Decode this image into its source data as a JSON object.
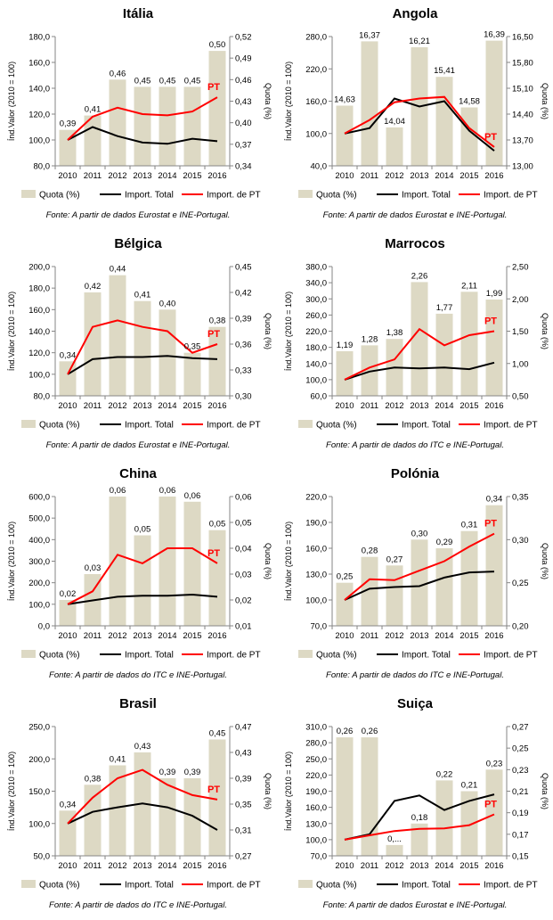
{
  "colors": {
    "bar": "#ddd9c4",
    "total": "#000000",
    "pt": "#ff0000",
    "axis": "#868686"
  },
  "legend": {
    "quota": "Quota (%)",
    "total": "Import. Total",
    "pt": "Import. de PT"
  },
  "chart_data": [
    {
      "type": "bar+line",
      "title": "Itália",
      "source": "Fonte: A partir de dados Eurostat e INE-Portugal.",
      "categories": [
        "2010",
        "2011",
        "2012",
        "2013",
        "2014",
        "2015",
        "2016"
      ],
      "ylabel": "Índ.Valor (2010 = 100)",
      "y2label": "Quota (%)",
      "ylim": [
        80,
        180
      ],
      "yticks": [
        "80,0",
        "100,0",
        "120,0",
        "140,0",
        "160,0",
        "180,0"
      ],
      "y2lim": [
        0.34,
        0.52
      ],
      "y2ticks": [
        "0,34",
        "0,37",
        "0,40",
        "0,43",
        "0,46",
        "0,49",
        "0,52"
      ],
      "quota": [
        0.39,
        0.41,
        0.46,
        0.45,
        0.45,
        0.45,
        0.5
      ],
      "quota_labels": [
        "0,39",
        "0,41",
        "0,46",
        "0,45",
        "0,45",
        "0,45",
        "0,50"
      ],
      "total": [
        100,
        110,
        103,
        98,
        97,
        101,
        99
      ],
      "pt": [
        100,
        118,
        125,
        120,
        119,
        122,
        133
      ],
      "pt_label": "PT"
    },
    {
      "type": "bar+line",
      "title": "Angola",
      "source": "Fonte: A partir de dados Eurostat e INE-Portugal.",
      "categories": [
        "2010",
        "2011",
        "2012",
        "2013",
        "2014",
        "2015",
        "2016"
      ],
      "ylabel": "Índ.Valor (2010 = 100)",
      "y2label": "Quota (%)",
      "ylim": [
        40,
        280
      ],
      "yticks": [
        "40,0",
        "100,0",
        "160,0",
        "220,0",
        "280,0"
      ],
      "y2lim": [
        13.0,
        16.5
      ],
      "y2ticks": [
        "13,00",
        "13,70",
        "14,40",
        "15,10",
        "15,80",
        "16,50"
      ],
      "quota": [
        14.63,
        16.37,
        14.04,
        16.21,
        15.41,
        14.58,
        16.39
      ],
      "quota_labels": [
        "14,63",
        "16,37",
        "14,04",
        "16,21",
        "15,41",
        "14,58",
        "16,39"
      ],
      "total": [
        100,
        110,
        165,
        150,
        160,
        105,
        68
      ],
      "pt": [
        100,
        125,
        158,
        165,
        168,
        110,
        75
      ],
      "pt_label": "PT"
    },
    {
      "type": "bar+line",
      "title": "Bélgica",
      "source": "Fonte: A partir de dados Eurostat e INE-Portugal.",
      "categories": [
        "2010",
        "2011",
        "2012",
        "2013",
        "2014",
        "2015",
        "2016"
      ],
      "ylabel": "Índ.Valor (2010 = 100)",
      "y2label": "Quota (%)",
      "ylim": [
        80,
        200
      ],
      "yticks": [
        "80,0",
        "100,0",
        "120,0",
        "140,0",
        "160,0",
        "180,0",
        "200,0"
      ],
      "y2lim": [
        0.3,
        0.45
      ],
      "y2ticks": [
        "0,30",
        "0,33",
        "0,36",
        "0,39",
        "0,42",
        "0,45"
      ],
      "quota": [
        0.34,
        0.42,
        0.44,
        0.41,
        0.4,
        0.35,
        0.38
      ],
      "quota_labels": [
        "0,34",
        "0,42",
        "0,44",
        "0,41",
        "0,40",
        "0,35",
        "0,38"
      ],
      "total": [
        100,
        114,
        116,
        116,
        117,
        115,
        114
      ],
      "pt": [
        100,
        144,
        150,
        144,
        140,
        120,
        128
      ],
      "pt_label": "PT"
    },
    {
      "type": "bar+line",
      "title": "Marrocos",
      "source": "Fonte: A partir de dados do ITC e INE-Portugal.",
      "categories": [
        "2010",
        "2011",
        "2012",
        "2013",
        "2014",
        "2015",
        "2016"
      ],
      "ylabel": "Índ.Valor (2010 = 100)",
      "y2label": "Quota (%)",
      "ylim": [
        60,
        380
      ],
      "yticks": [
        "60,0",
        "100,0",
        "140,0",
        "180,0",
        "220,0",
        "260,0",
        "300,0",
        "340,0",
        "380,0"
      ],
      "y2lim": [
        0.5,
        2.5
      ],
      "y2ticks": [
        "0,50",
        "1,00",
        "1,50",
        "2,00",
        "2,50"
      ],
      "quota": [
        1.19,
        1.28,
        1.38,
        2.26,
        1.77,
        2.11,
        1.99
      ],
      "quota_labels": [
        "1,19",
        "1,28",
        "1,38",
        "2,26",
        "1,77",
        "2,11",
        "1,99"
      ],
      "total": [
        100,
        120,
        130,
        128,
        130,
        126,
        142
      ],
      "pt": [
        100,
        130,
        150,
        225,
        185,
        210,
        220
      ],
      "pt_label": "PT"
    },
    {
      "type": "bar+line",
      "title": "China",
      "source": "Fonte: A partir de dados do ITC e INE-Portugal.",
      "categories": [
        "2010",
        "2011",
        "2012",
        "2013",
        "2014",
        "2015",
        "2016"
      ],
      "ylabel": "Índ.Valor (2010 = 100)",
      "y2label": "Quota (%)",
      "ylim": [
        0,
        600
      ],
      "yticks": [
        "0,0",
        "100,0",
        "200,0",
        "300,0",
        "400,0",
        "500,0",
        "600,0"
      ],
      "y2lim": [
        0.01,
        0.06
      ],
      "y2ticks": [
        "0,01",
        "0,02",
        "0,03",
        "0,04",
        "0,05",
        "0,06"
      ],
      "quota": [
        0.02,
        0.03,
        0.06,
        0.045,
        0.06,
        0.058,
        0.047
      ],
      "quota_labels": [
        "0,02",
        "0,03",
        "0,06",
        "0,05",
        "0,06",
        "0,06",
        "0,05"
      ],
      "total": [
        100,
        118,
        135,
        140,
        140,
        145,
        135
      ],
      "pt": [
        100,
        160,
        330,
        290,
        360,
        360,
        290
      ],
      "pt_label": "PT"
    },
    {
      "type": "bar+line",
      "title": "Polónia",
      "source": "Fonte: A partir de dados do ITC e INE-Portugal.",
      "categories": [
        "2010",
        "2011",
        "2012",
        "2013",
        "2014",
        "2015",
        "2016"
      ],
      "ylabel": "Índ.Valor (2010 = 100)",
      "y2label": "Quota (%)",
      "ylim": [
        70,
        220
      ],
      "yticks": [
        "70,0",
        "100,0",
        "130,0",
        "160,0",
        "190,0",
        "220,0"
      ],
      "y2lim": [
        0.2,
        0.35
      ],
      "y2ticks": [
        "0,20",
        "0,25",
        "0,30",
        "0,35"
      ],
      "quota": [
        0.25,
        0.28,
        0.27,
        0.3,
        0.29,
        0.31,
        0.34
      ],
      "quota_labels": [
        "0,25",
        "0,28",
        "0,27",
        "0,30",
        "0,29",
        "0,31",
        "0,34"
      ],
      "total": [
        100,
        113,
        115,
        116,
        126,
        132,
        133
      ],
      "pt": [
        100,
        124,
        123,
        134,
        145,
        162,
        177
      ],
      "pt_label": "PT"
    },
    {
      "type": "bar+line",
      "title": "Brasil",
      "source": "Fonte: A partir de dados do ITC e INE-Portugal.",
      "categories": [
        "2010",
        "2011",
        "2012",
        "2013",
        "2014",
        "2015",
        "2016"
      ],
      "ylabel": "Índ.Valor (2010 = 100)",
      "y2label": "Quota (%)",
      "ylim": [
        50,
        250
      ],
      "yticks": [
        "50,0",
        "100,0",
        "150,0",
        "200,0",
        "250,0"
      ],
      "y2lim": [
        0.27,
        0.47
      ],
      "y2ticks": [
        "0,27",
        "0,31",
        "0,35",
        "0,39",
        "0,43",
        "0,47"
      ],
      "quota": [
        0.34,
        0.38,
        0.41,
        0.43,
        0.39,
        0.39,
        0.45
      ],
      "quota_labels": [
        "0,34",
        "0,38",
        "0,41",
        "0,43",
        "0,39",
        "0,39",
        "0,45"
      ],
      "total": [
        100,
        118,
        125,
        131,
        125,
        112,
        90
      ],
      "pt": [
        100,
        140,
        170,
        183,
        160,
        144,
        137
      ],
      "pt_label": "PT"
    },
    {
      "type": "bar+line",
      "title": "Suiça",
      "source": "Fonte: A partir de dados Eurostat e INE-Portugal.",
      "categories": [
        "2010",
        "2011",
        "2012",
        "2013",
        "2014",
        "2015",
        "2016"
      ],
      "ylabel": "Índ.Valor (2010 = 100)",
      "y2label": "Quota (%)",
      "ylim": [
        70,
        310
      ],
      "yticks": [
        "70,0",
        "100,0",
        "130,0",
        "160,0",
        "190,0",
        "220,0",
        "250,0",
        "280,0",
        "310,0"
      ],
      "y2lim": [
        0.15,
        0.27
      ],
      "y2ticks": [
        "0,15",
        "0,17",
        "0,19",
        "0,21",
        "0,23",
        "0,25",
        "0,27"
      ],
      "quota": [
        0.26,
        0.26,
        0.16,
        0.18,
        0.22,
        0.21,
        0.23
      ],
      "quota_labels": [
        "0,26",
        "0,26",
        "0,...",
        "0,18",
        "0,22",
        "0,21",
        "0,23"
      ],
      "total": [
        100,
        110,
        172,
        182,
        155,
        172,
        184
      ],
      "pt": [
        100,
        108,
        116,
        120,
        121,
        127,
        147
      ],
      "pt_label": "PT"
    }
  ]
}
